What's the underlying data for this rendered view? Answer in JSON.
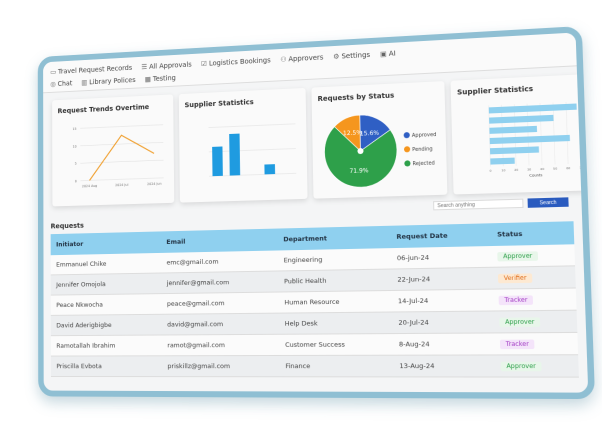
{
  "nav": {
    "row1": [
      {
        "icon": "briefcase-icon",
        "glyph": "▭",
        "label": "Travel Request Records"
      },
      {
        "icon": "list-icon",
        "glyph": "☰",
        "label": "All Approvals"
      },
      {
        "icon": "checkbox-icon",
        "glyph": "☑",
        "label": "Logistics Bookings"
      },
      {
        "icon": "users-icon",
        "glyph": "⚇",
        "label": "Approvers"
      },
      {
        "icon": "gear-icon",
        "glyph": "⚙",
        "label": "Settings"
      },
      {
        "icon": "ai-icon",
        "glyph": "▣",
        "label": "AI"
      }
    ],
    "row2": [
      {
        "icon": "chat-icon",
        "glyph": "◎",
        "label": "Chat"
      },
      {
        "icon": "library-icon",
        "glyph": "▥",
        "label": "Library Polices"
      },
      {
        "icon": "table-icon",
        "glyph": "▦",
        "label": "Testing"
      }
    ]
  },
  "chart_data": [
    {
      "type": "line",
      "title": "Request Trends Overtime",
      "categories": [
        "2024 Aug",
        "2024 Jul",
        "2024 Jun"
      ],
      "values": [
        0,
        12.5,
        7
      ],
      "ylim": [
        0,
        15
      ],
      "yticks": [
        0,
        5,
        10,
        15
      ],
      "color": "#f0a030",
      "grid": true
    },
    {
      "type": "bar",
      "title": "Supplier Statistics",
      "categories": [
        "",
        "",
        "",
        "",
        ""
      ],
      "values": [
        2400,
        3400,
        0,
        800,
        0
      ],
      "ylim": [
        0,
        4000
      ],
      "color": "#1f9be0",
      "grid": true
    },
    {
      "type": "pie",
      "title": "Requests  by Status",
      "slices": [
        {
          "label": "Approved",
          "value": 15.6,
          "color": "#2f5fc4"
        },
        {
          "label": "Pending",
          "value": 12.5,
          "color": "#f5961e"
        },
        {
          "label": "Rejected",
          "value": 71.9,
          "color": "#2ea04a"
        }
      ],
      "legend": "right"
    },
    {
      "type": "bar",
      "orientation": "horizontal",
      "title": "Supplier Statistics",
      "values": [
        68,
        50,
        37,
        62,
        38,
        19
      ],
      "xlim": [
        0,
        70
      ],
      "xticks": [
        0,
        10,
        20,
        30,
        40,
        50,
        60,
        70
      ],
      "xlabel": "Counts",
      "color": "#8fd0ef",
      "grid": true
    }
  ],
  "search": {
    "placeholder": "Search anything",
    "button": "Search"
  },
  "requests": {
    "title": "Requests",
    "columns": [
      "Initiator",
      "Email",
      "Department",
      "Request Date",
      "Status"
    ],
    "rows": [
      [
        "Emmanuel Chike",
        "emc@gmail.com",
        "Engineering",
        "06-jun-24",
        "Approver"
      ],
      [
        "Jennifer Omojola",
        "jennifer@gmail.com",
        "Public Health",
        "22-Jun-24",
        "Verifier"
      ],
      [
        "Peace Nkwocha",
        "peace@gmail.com",
        "Human Resource",
        "14-Jul-24",
        "Tracker"
      ],
      [
        "David Aderigbigbe",
        "david@gmail.com",
        "Help Desk",
        "20-Jul-24",
        "Approver"
      ],
      [
        "Ramotallah Ibrahim",
        "ramot@gmail.com",
        "Customer Success",
        "8-Aug-24",
        "Tracker"
      ],
      [
        "Priscilla Evbota",
        "priskillz@gmail.com",
        "Finance",
        "13-Aug-24",
        "Approver"
      ]
    ]
  },
  "status_colors": {
    "Approver": [
      "#2ea04a",
      "#e8f6ea"
    ],
    "Verifier": [
      "#e0701e",
      "#fde9d2"
    ],
    "Tracker": [
      "#a23bc4",
      "#f4e4fa"
    ]
  }
}
